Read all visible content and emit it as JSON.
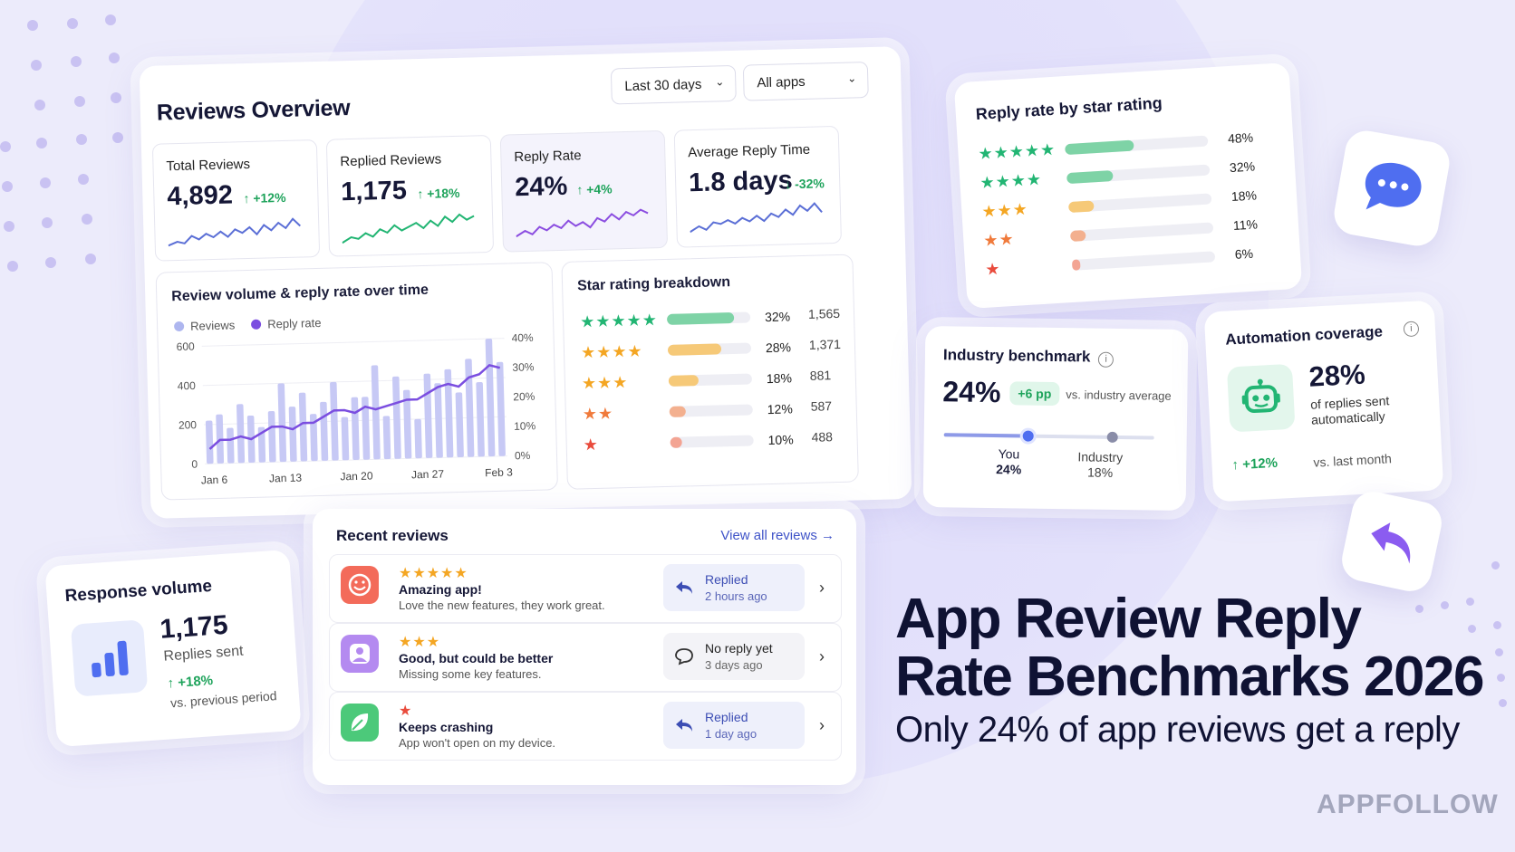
{
  "overview": {
    "title": "Reviews Overview",
    "filter_period": "Last 30 days",
    "filter_apps": "All apps",
    "kpis": [
      {
        "label": "Total Reviews",
        "value": "4,892",
        "change": "+12%"
      },
      {
        "label": "Replied Reviews",
        "value": "1,175",
        "change": "+18%"
      },
      {
        "label": "Reply Rate",
        "value": "24%",
        "change": "+4%"
      },
      {
        "label": "Average Reply Time",
        "value": "1.8 days",
        "change": "-32%"
      }
    ],
    "volume_chart": {
      "title": "Review volume & reply rate over time",
      "legend_reviews": "Reviews",
      "legend_reply_rate": "Reply rate"
    },
    "breakdown": {
      "title": "Star rating breakdown",
      "rows": [
        {
          "stars": "★★★★★",
          "pct": "32%",
          "count": "1,565",
          "fill": 0.8
        },
        {
          "stars": "★★★★",
          "pct": "28%",
          "count": "1,371",
          "fill": 0.64
        },
        {
          "stars": "★★★",
          "pct": "18%",
          "count": "881",
          "fill": 0.36
        },
        {
          "stars": "★★",
          "pct": "12%",
          "count": "587",
          "fill": 0.2
        },
        {
          "stars": "★",
          "pct": "10%",
          "count": "488",
          "fill": 0.14
        }
      ]
    }
  },
  "chart_data": {
    "type": "bar",
    "x_ticks": [
      "Jan 6",
      "Jan 13",
      "Jan 20",
      "Jan 27",
      "Feb 3"
    ],
    "y_ticks_left": [
      "600",
      "400",
      "200",
      "0"
    ],
    "y_ticks_right": [
      "40%",
      "30%",
      "20%",
      "10%",
      "0%"
    ],
    "ylim": [
      0,
      600
    ],
    "ylim_right": [
      0,
      40
    ],
    "series": [
      {
        "name": "Reviews",
        "values": [
          220,
          250,
          180,
          300,
          240,
          180,
          260,
          400,
          280,
          350,
          240,
          300,
          400,
          220,
          320,
          320,
          480,
          220,
          420,
          350,
          200,
          430,
          380,
          450,
          330,
          500,
          380,
          660,
          480
        ]
      },
      {
        "name": "Reply rate",
        "values": [
          5,
          8,
          8,
          9,
          8,
          10,
          12,
          12,
          11,
          13,
          13,
          15,
          17,
          17,
          16,
          18,
          17,
          18,
          19,
          20,
          20,
          22,
          24,
          25,
          24,
          27,
          28,
          31,
          30
        ]
      }
    ]
  },
  "reply_rate_by_star": {
    "title": "Reply rate by star rating",
    "rows": [
      {
        "stars": "★★★★★",
        "pct": "48%",
        "fill": 0.48,
        "color": "#7ed3a6"
      },
      {
        "stars": "★★★★",
        "pct": "32%",
        "fill": 0.32,
        "color": "#7ed3a6"
      },
      {
        "stars": "★★★",
        "pct": "18%",
        "fill": 0.18,
        "color": "#f6c978"
      },
      {
        "stars": "★★",
        "pct": "11%",
        "fill": 0.11,
        "color": "#f3b08f"
      },
      {
        "stars": "★",
        "pct": "6%",
        "fill": 0.06,
        "color": "#f3a493"
      }
    ]
  },
  "benchmark": {
    "title": "Industry benchmark",
    "value": "24%",
    "delta": "+6 pp",
    "compare": "vs. industry average",
    "you_label": "You",
    "you_value": "24%",
    "industry_label": "Industry",
    "industry_value": "18%"
  },
  "automation": {
    "title": "Automation coverage",
    "value": "28%",
    "desc_line1": "of replies sent",
    "desc_line2": "automatically",
    "change": "+12%",
    "compare": "vs. last month"
  },
  "recent": {
    "title": "Recent reviews",
    "view_all": "View all reviews",
    "items": [
      {
        "stars": "★★★★★",
        "title": "Amazing app!",
        "desc": "Love the new features, they work great.",
        "status": "Replied",
        "time": "2 hours ago"
      },
      {
        "stars": "★★★",
        "title": "Good, but could be better",
        "desc": "Missing some key features.",
        "status": "No reply yet",
        "time": "3 days ago"
      },
      {
        "stars": "★",
        "title": "Keeps crashing",
        "desc": "App won't open on my device.",
        "status": "Replied",
        "time": "1 day ago"
      }
    ]
  },
  "response": {
    "title": "Response volume",
    "value": "1,175",
    "label": "Replies sent",
    "change": "+18%",
    "compare": "vs. previous period"
  },
  "hero": {
    "line1": "App Review Reply",
    "line2": "Rate Benchmarks 2026",
    "tagline": "Only 24% of app reviews get a reply"
  },
  "brand": "APPFOLLOW",
  "colors": {
    "accent": "#6c5ce7",
    "green": "#22b573",
    "reviews_bar": "#c7c9f5",
    "reply_line": "#7b4ee0"
  }
}
